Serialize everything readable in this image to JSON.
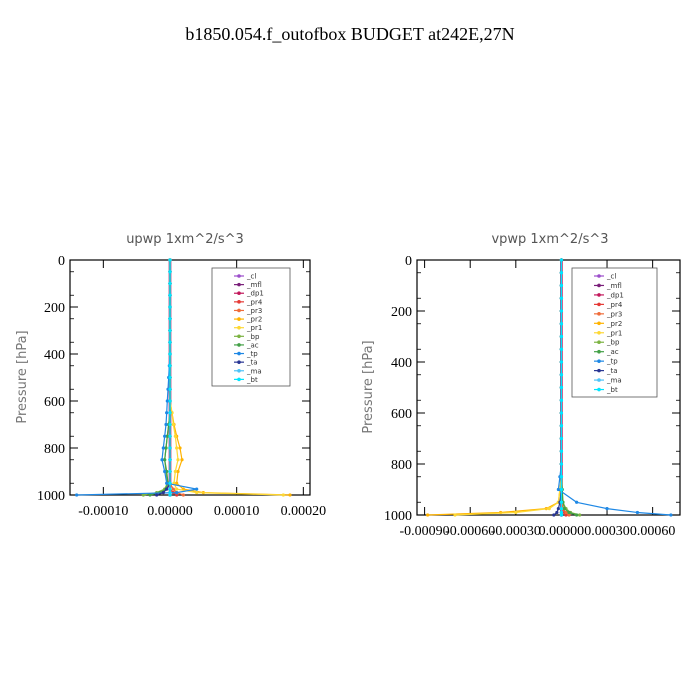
{
  "figure": {
    "title": "b1850.054.f_outofbox  BUDGET at242E,27N"
  },
  "legend_entries": [
    {
      "label": "_cl",
      "color": "#9b4dca"
    },
    {
      "label": "_mfl",
      "color": "#7a1f7a"
    },
    {
      "label": "_dp1",
      "color": "#c2185b"
    },
    {
      "label": "_pr4",
      "color": "#e53935"
    },
    {
      "label": "_pr3",
      "color": "#ef6c3a"
    },
    {
      "label": "_pr2",
      "color": "#ffb300"
    },
    {
      "label": "_pr1",
      "color": "#fdd835"
    },
    {
      "label": "_bp",
      "color": "#7cb342"
    },
    {
      "label": "_ac",
      "color": "#43a047"
    },
    {
      "label": "_tp",
      "color": "#1e88e5"
    },
    {
      "label": "_ta",
      "color": "#283593"
    },
    {
      "label": "_ma",
      "color": "#4fc3f7"
    },
    {
      "label": "_bt",
      "color": "#00e5ff"
    }
  ],
  "chart_data": [
    {
      "type": "line",
      "title": "upwp   1xm^2/s^3",
      "ylabel": "Pressure [hPa]",
      "xlabel": "",
      "xlim": [
        -0.00015,
        0.00021
      ],
      "ylim": [
        1000,
        0
      ],
      "xticks": [
        -0.0001,
        0,
        0.0001,
        0.0002
      ],
      "xtick_labels": [
        "-0.00010",
        "0.00000",
        "0.00010",
        "0.00020"
      ],
      "yticks": [
        0,
        200,
        400,
        600,
        800,
        1000
      ],
      "ytick_labels": [
        "0",
        "200",
        "400",
        "600",
        "800",
        "1000"
      ],
      "legend_position": "top-right",
      "y": [
        0,
        50,
        100,
        150,
        200,
        250,
        300,
        350,
        400,
        450,
        500,
        550,
        600,
        650,
        700,
        750,
        800,
        850,
        900,
        950,
        975,
        990,
        1000
      ],
      "series": [
        {
          "name": "_cl",
          "color": "#9b4dca",
          "values": [
            0,
            0,
            0,
            0,
            0,
            0,
            0,
            0,
            0,
            0,
            0,
            0,
            0,
            0,
            0,
            0,
            0,
            0,
            0,
            0,
            0,
            0,
            0
          ]
        },
        {
          "name": "_mfl",
          "color": "#7a1f7a",
          "values": [
            0,
            0,
            0,
            0,
            0,
            0,
            0,
            0,
            0,
            0,
            0,
            0,
            0,
            0,
            0,
            0,
            0,
            0,
            0,
            0,
            0,
            0,
            0
          ]
        },
        {
          "name": "_dp1",
          "color": "#c2185b",
          "values": [
            0,
            0,
            0,
            0,
            0,
            0,
            0,
            0,
            0,
            0,
            0,
            0,
            0,
            0,
            0,
            0,
            0,
            0,
            0,
            0,
            0,
            0,
            0
          ]
        },
        {
          "name": "_pr4",
          "color": "#e53935",
          "values": [
            0,
            0,
            0,
            0,
            0,
            0,
            0,
            0,
            0,
            0,
            0,
            0,
            0,
            0,
            0,
            0,
            0,
            0,
            0,
            0,
            0,
            5e-06,
            1e-05
          ]
        },
        {
          "name": "_pr3",
          "color": "#ef6c3a",
          "values": [
            0,
            0,
            0,
            0,
            0,
            0,
            0,
            0,
            0,
            0,
            0,
            0,
            0,
            0,
            0,
            0,
            0,
            0,
            0,
            0,
            5e-06,
            1e-05,
            2e-05
          ]
        },
        {
          "name": "_pr2",
          "color": "#ffb300",
          "values": [
            0,
            0,
            0,
            0,
            0,
            0,
            0,
            0,
            0,
            0,
            0,
            0,
            0,
            3e-06,
            6e-06,
            1e-05,
            1.5e-05,
            1.8e-05,
            1.2e-05,
            1e-05,
            2e-05,
            5e-05,
            0.00018
          ]
        },
        {
          "name": "_pr1",
          "color": "#fdd835",
          "values": [
            0,
            0,
            0,
            0,
            0,
            0,
            0,
            0,
            0,
            0,
            0,
            0,
            0,
            3e-06,
            5e-06,
            8e-06,
            1e-05,
            1.2e-05,
            8e-06,
            6e-06,
            1e-05,
            4e-05,
            0.00017
          ]
        },
        {
          "name": "_bp",
          "color": "#7cb342",
          "values": [
            0,
            0,
            0,
            0,
            0,
            0,
            0,
            0,
            0,
            0,
            0,
            0,
            0,
            0,
            -2e-06,
            -4e-06,
            -6e-06,
            -8e-06,
            -6e-06,
            -4e-06,
            -8e-06,
            -2e-05,
            -4e-05
          ]
        },
        {
          "name": "_ac",
          "color": "#43a047",
          "values": [
            0,
            0,
            0,
            0,
            0,
            0,
            0,
            0,
            0,
            0,
            0,
            0,
            0,
            0,
            -2e-06,
            -4e-06,
            -6e-06,
            -8e-06,
            -5e-06,
            -3e-06,
            -6e-06,
            -1.5e-05,
            -3e-05
          ]
        },
        {
          "name": "_tp",
          "color": "#1e88e5",
          "values": [
            0,
            0,
            0,
            0,
            0,
            0,
            0,
            0,
            0,
            -1e-06,
            -2e-06,
            -3e-06,
            -4e-06,
            -5e-06,
            -6e-06,
            -8e-06,
            -1e-05,
            -1.2e-05,
            -8e-06,
            -5e-06,
            4e-05,
            1e-05,
            -0.00014
          ]
        },
        {
          "name": "_ta",
          "color": "#283593",
          "values": [
            0,
            0,
            0,
            0,
            0,
            0,
            0,
            0,
            0,
            0,
            0,
            0,
            0,
            0,
            0,
            0,
            0,
            0,
            0,
            0,
            -5e-06,
            -1e-05,
            -2e-05
          ]
        },
        {
          "name": "_ma",
          "color": "#4fc3f7",
          "values": [
            0,
            0,
            0,
            0,
            0,
            0,
            0,
            0,
            0,
            0,
            0,
            0,
            0,
            0,
            0,
            0,
            0,
            0,
            0,
            0,
            0,
            0,
            0
          ]
        },
        {
          "name": "_bt",
          "color": "#00e5ff",
          "values": [
            0,
            0,
            0,
            0,
            0,
            0,
            0,
            0,
            0,
            0,
            0,
            0,
            0,
            0,
            0,
            0,
            0,
            0,
            0,
            0,
            0,
            0,
            0
          ]
        }
      ]
    },
    {
      "type": "line",
      "title": "vpwp   1xm^2/s^3",
      "ylabel": "Pressure [hPa]",
      "xlabel": "",
      "xlim": [
        -0.00095,
        0.00078
      ],
      "ylim": [
        1000,
        0
      ],
      "xticks": [
        -0.0009,
        -0.0006,
        -0.0003,
        0,
        0.0003,
        0.0006
      ],
      "xtick_labels": [
        "-0.00090",
        "-0.00060",
        "-0.00030",
        "0.00000",
        "0.00030",
        "0.00060"
      ],
      "yticks": [
        0,
        200,
        400,
        600,
        800,
        1000
      ],
      "ytick_labels": [
        "0",
        "200",
        "400",
        "600",
        "800",
        "1000"
      ],
      "legend_position": "top-right",
      "y": [
        0,
        50,
        100,
        150,
        200,
        250,
        300,
        350,
        400,
        450,
        500,
        550,
        600,
        650,
        700,
        750,
        800,
        850,
        900,
        950,
        975,
        990,
        1000
      ],
      "series": [
        {
          "name": "_cl",
          "color": "#9b4dca",
          "values": [
            0,
            0,
            0,
            0,
            0,
            0,
            0,
            0,
            0,
            0,
            0,
            0,
            0,
            0,
            0,
            0,
            0,
            0,
            0,
            0,
            0,
            0,
            0
          ]
        },
        {
          "name": "_mfl",
          "color": "#7a1f7a",
          "values": [
            0,
            0,
            0,
            0,
            0,
            0,
            0,
            0,
            0,
            0,
            0,
            0,
            0,
            0,
            0,
            0,
            0,
            0,
            0,
            0,
            0,
            0,
            0
          ]
        },
        {
          "name": "_dp1",
          "color": "#c2185b",
          "values": [
            0,
            0,
            0,
            0,
            0,
            0,
            0,
            0,
            0,
            0,
            0,
            0,
            0,
            0,
            0,
            0,
            0,
            0,
            0,
            0,
            0,
            0,
            0
          ]
        },
        {
          "name": "_pr4",
          "color": "#e53935",
          "values": [
            0,
            0,
            0,
            0,
            0,
            0,
            0,
            0,
            0,
            0,
            0,
            0,
            0,
            0,
            0,
            0,
            0,
            0,
            0,
            0,
            1e-05,
            2e-05,
            3e-05
          ]
        },
        {
          "name": "_pr3",
          "color": "#ef6c3a",
          "values": [
            0,
            0,
            0,
            0,
            0,
            0,
            0,
            0,
            0,
            0,
            0,
            0,
            0,
            0,
            0,
            0,
            0,
            0,
            0,
            0,
            1e-05,
            3e-05,
            5e-05
          ]
        },
        {
          "name": "_pr2",
          "color": "#ffb300",
          "values": [
            0,
            0,
            0,
            0,
            0,
            0,
            0,
            0,
            0,
            0,
            0,
            0,
            0,
            0,
            0,
            0,
            0,
            0,
            -1e-05,
            -2e-05,
            -0.0001,
            -0.0004,
            -0.00088
          ]
        },
        {
          "name": "_pr1",
          "color": "#fdd835",
          "values": [
            0,
            0,
            0,
            0,
            0,
            0,
            0,
            0,
            0,
            0,
            0,
            0,
            0,
            0,
            0,
            0,
            0,
            0,
            -1e-05,
            -2e-05,
            -8e-05,
            -0.0003,
            -0.0007
          ]
        },
        {
          "name": "_bp",
          "color": "#7cb342",
          "values": [
            0,
            0,
            0,
            0,
            0,
            0,
            0,
            0,
            0,
            0,
            0,
            0,
            0,
            0,
            0,
            0,
            0,
            0,
            5e-06,
            1e-05,
            3e-05,
            6e-05,
            0.00012
          ]
        },
        {
          "name": "_ac",
          "color": "#43a047",
          "values": [
            0,
            0,
            0,
            0,
            0,
            0,
            0,
            0,
            0,
            0,
            0,
            0,
            0,
            0,
            0,
            0,
            0,
            0,
            5e-06,
            1e-05,
            2e-05,
            5e-05,
            0.0001
          ]
        },
        {
          "name": "_tp",
          "color": "#1e88e5",
          "values": [
            0,
            0,
            0,
            0,
            0,
            0,
            0,
            0,
            0,
            0,
            0,
            0,
            0,
            0,
            0,
            0,
            0,
            -1e-05,
            -2e-05,
            0.0001,
            0.0003,
            0.0005,
            0.00072
          ]
        },
        {
          "name": "_ta",
          "color": "#283593",
          "values": [
            0,
            0,
            0,
            0,
            0,
            0,
            0,
            0,
            0,
            0,
            0,
            0,
            0,
            0,
            0,
            0,
            0,
            0,
            0,
            -1e-05,
            -2e-05,
            -3e-05,
            -5e-05
          ]
        },
        {
          "name": "_ma",
          "color": "#4fc3f7",
          "values": [
            0,
            0,
            0,
            0,
            0,
            0,
            0,
            0,
            0,
            0,
            0,
            0,
            0,
            0,
            0,
            0,
            0,
            0,
            0,
            0,
            0,
            0,
            0
          ]
        },
        {
          "name": "_bt",
          "color": "#00e5ff",
          "values": [
            0,
            0,
            0,
            0,
            0,
            0,
            0,
            0,
            0,
            0,
            0,
            0,
            0,
            0,
            0,
            0,
            0,
            0,
            0,
            0,
            0,
            0,
            0
          ]
        }
      ]
    }
  ]
}
